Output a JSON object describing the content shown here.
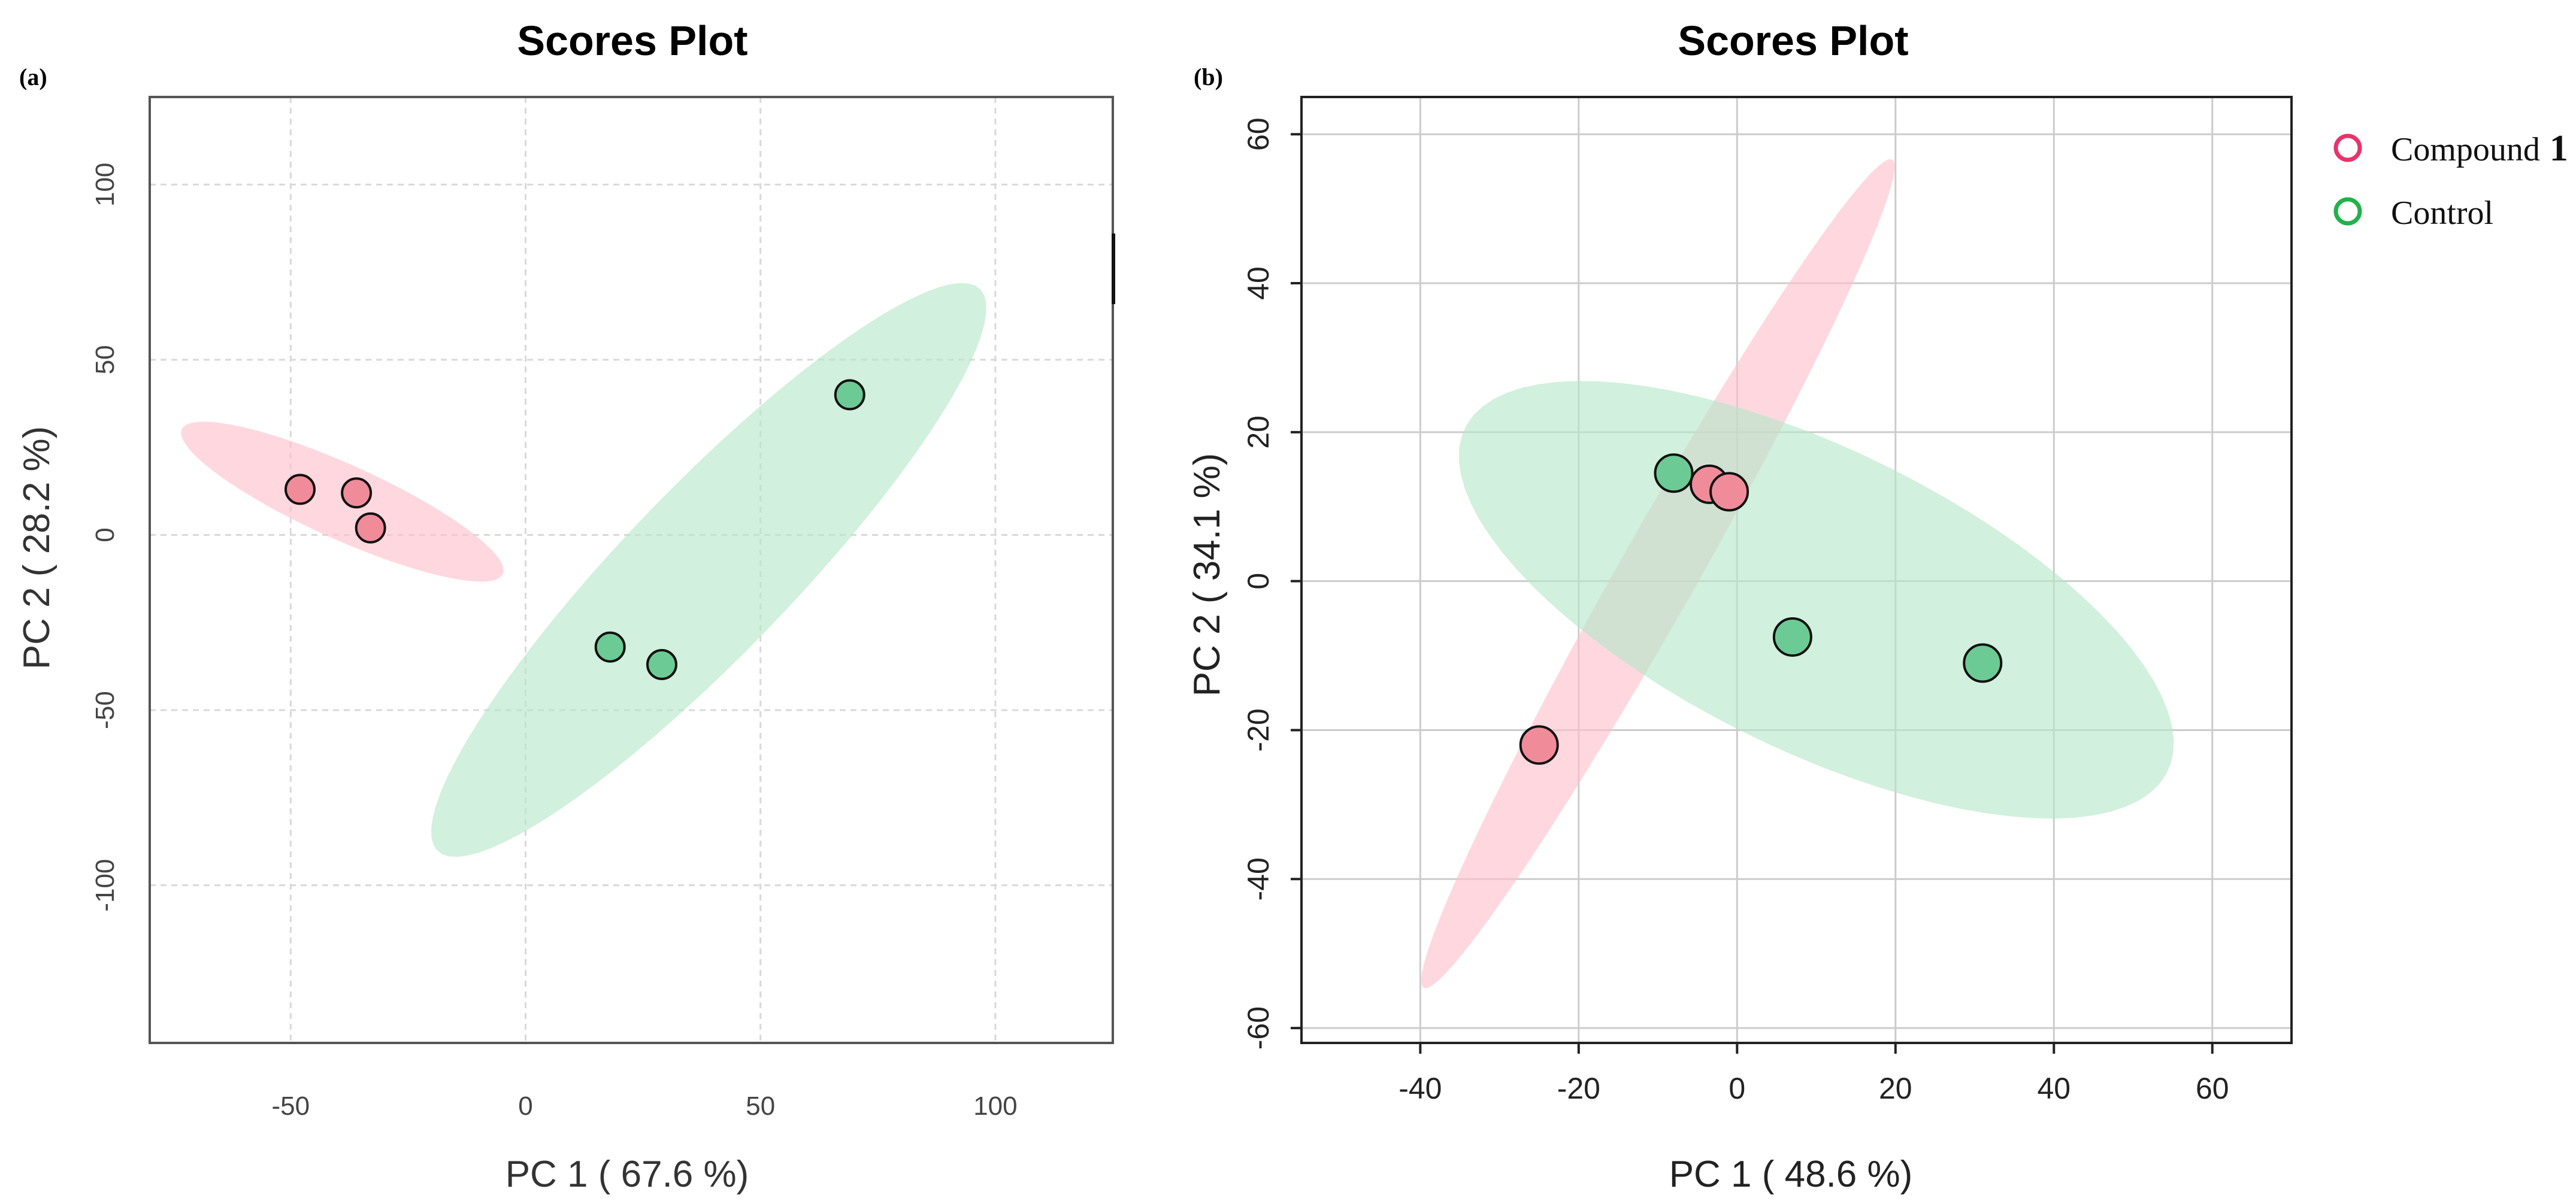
{
  "colors": {
    "compound": "#E8336B",
    "control": "#22B14C",
    "compound_ellipse": "#FFC0CB",
    "control_ellipse": "#B4E6C8",
    "compound_point": "#F08C9A",
    "control_point": "#6CCB94"
  },
  "legend": {
    "items": [
      {
        "label": "Compound",
        "emphasis": "1",
        "color": "#E8336B"
      },
      {
        "label": "Control",
        "emphasis": "",
        "color": "#22B14C"
      }
    ],
    "placement": "top-right"
  },
  "chart_data": [
    {
      "panel_label": "(a)",
      "type": "scatter",
      "title": "Scores Plot",
      "xlabel": "PC 1 ( 67.6 %)",
      "ylabel": "PC 2 ( 28.2 %)",
      "xlim": [
        -80,
        125
      ],
      "ylim": [
        -145,
        125
      ],
      "xticks": [
        "-50",
        "0",
        "50",
        "100"
      ],
      "xtick_values": [
        -50,
        0,
        50,
        100
      ],
      "yticks": [
        "-100",
        "-50",
        "0",
        "50",
        "100"
      ],
      "ytick_values": [
        -100,
        -50,
        0,
        50,
        100
      ],
      "grid": "dashed",
      "series": [
        {
          "group": "compound",
          "points": [
            [
              -48,
              13
            ],
            [
              -36,
              12
            ],
            [
              -33,
              2
            ]
          ],
          "ellipse": {
            "center": [
              -39,
              9.5
            ],
            "semi_axes": [
              40,
              10
            ],
            "angle_deg": -32
          }
        },
        {
          "group": "control",
          "points": [
            [
              18,
              -32
            ],
            [
              29,
              -37
            ],
            [
              69,
              40
            ]
          ],
          "ellipse": {
            "center": [
              39,
              -10
            ],
            "semi_axes": [
              99,
              20
            ],
            "angle_deg": 55
          }
        }
      ]
    },
    {
      "panel_label": "(b)",
      "type": "scatter",
      "title": "Scores Plot",
      "xlabel": "PC 1 ( 48.6 %)",
      "ylabel": "PC 2 ( 34.1 %)",
      "xlim": [
        -55,
        70
      ],
      "ylim": [
        -62,
        65
      ],
      "xticks": [
        "-40",
        "-20",
        "0",
        "20",
        "40",
        "60"
      ],
      "xtick_values": [
        -40,
        -20,
        0,
        20,
        40,
        60
      ],
      "yticks": [
        "-60",
        "-40",
        "-20",
        "0",
        "20",
        "40",
        "60"
      ],
      "ytick_values": [
        -60,
        -40,
        -20,
        0,
        20,
        40,
        60
      ],
      "grid": "solid",
      "series": [
        {
          "group": "compound",
          "points": [
            [
              -25,
              -22
            ],
            [
              -3.5,
              13
            ],
            [
              -1,
              12
            ]
          ],
          "ellipse": {
            "center": [
              -10,
              1
            ],
            "semi_axes": [
              63,
              5
            ],
            "angle_deg": 62
          }
        },
        {
          "group": "control",
          "points": [
            [
              -8,
              14.5
            ],
            [
              7,
              -7.5
            ],
            [
              31,
              -11
            ]
          ],
          "ellipse": {
            "center": [
              10,
              -2.5
            ],
            "semi_axes": [
              50,
              20
            ],
            "angle_deg": -28
          }
        }
      ]
    }
  ]
}
